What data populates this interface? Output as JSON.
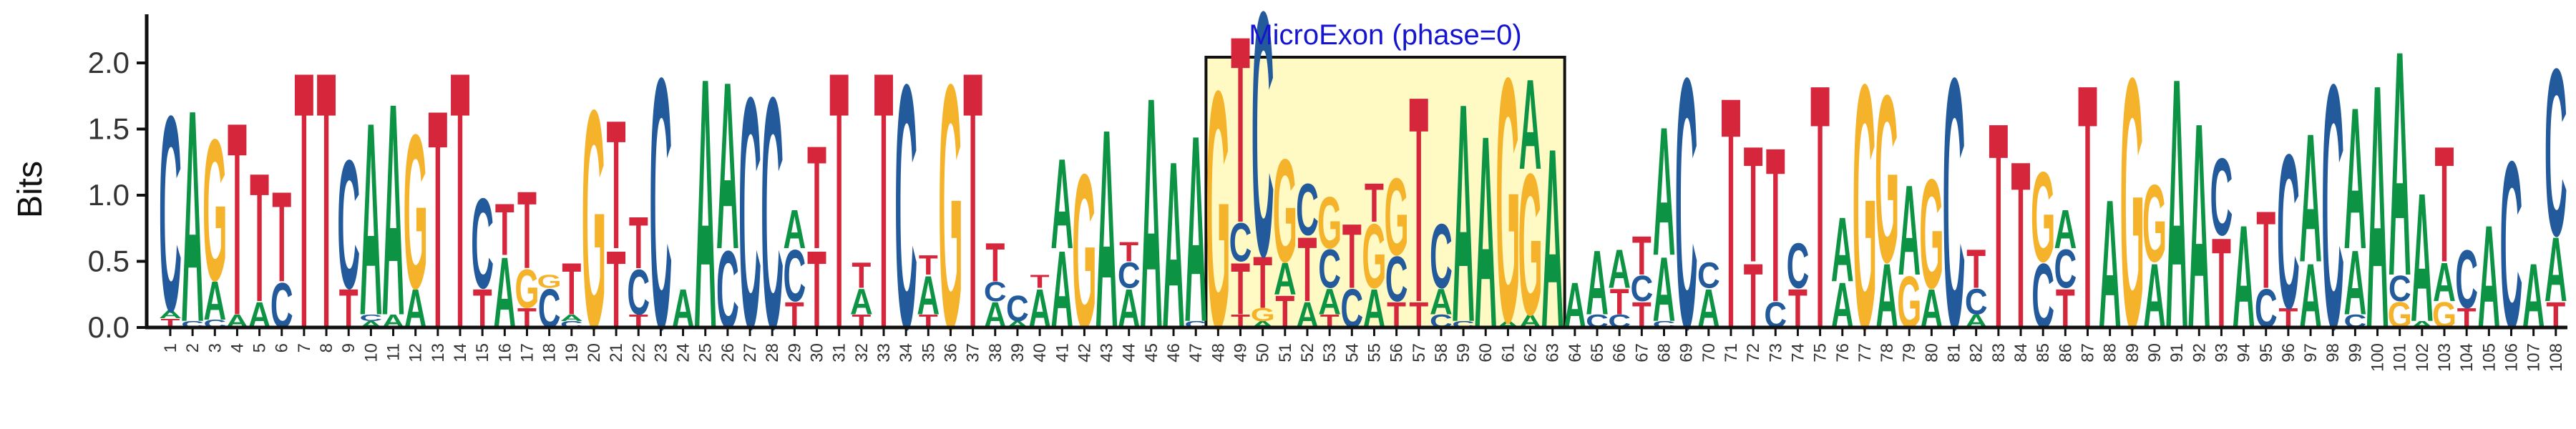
{
  "chart_data": {
    "type": "sequence-logo",
    "ylabel": "Bits",
    "ylim": [
      0,
      2.4
    ],
    "y_ticks": [
      "0.0",
      "0.5",
      "1.0",
      "1.5",
      "2.0"
    ],
    "x_ticks": [
      "1",
      "2",
      "3",
      "4",
      "5",
      "6",
      "7",
      "8",
      "9",
      "10",
      "11",
      "12",
      "13",
      "14",
      "15",
      "16",
      "17",
      "18",
      "19",
      "20",
      "21",
      "22",
      "23",
      "24",
      "25",
      "26",
      "27",
      "28",
      "29",
      "30",
      "31",
      "32",
      "33",
      "34",
      "35",
      "36",
      "37",
      "38",
      "39",
      "40",
      "41",
      "42",
      "43",
      "44",
      "45",
      "46",
      "47",
      "48",
      "49",
      "50",
      "51",
      "52",
      "53",
      "54",
      "55",
      "56",
      "57",
      "58",
      "59",
      "60",
      "61",
      "62",
      "63",
      "64",
      "65",
      "66",
      "67",
      "68",
      "69",
      "70",
      "71",
      "72",
      "73",
      "74",
      "75",
      "76",
      "77",
      "78",
      "79",
      "80",
      "81",
      "82",
      "83",
      "84",
      "85",
      "86",
      "87",
      "88",
      "89",
      "90",
      "91",
      "92",
      "93",
      "94",
      "95",
      "96",
      "97",
      "98",
      "99",
      "100",
      "101",
      "102",
      "103",
      "104",
      "105",
      "106",
      "107",
      "108"
    ],
    "grid": false,
    "legend": "none",
    "highlight": {
      "label": "MicroExon (phase=0)",
      "from": 48,
      "to": 63
    },
    "colors": {
      "A": "#0c9444",
      "C": "#235a9c",
      "G": "#f5b32b",
      "T": "#d5263c",
      "highlight_fill": "#fff9c4",
      "highlight_text": "#1515d0"
    },
    "columns": [
      [
        [
          "T",
          0.07
        ],
        [
          "A",
          0.06
        ],
        [
          "C",
          1.52
        ]
      ],
      [
        [
          "C",
          0.05
        ],
        [
          "A",
          1.65
        ]
      ],
      [
        [
          "C",
          0.06
        ],
        [
          "A",
          0.3
        ],
        [
          "G",
          1.1
        ]
      ],
      [
        [
          "A",
          0.1
        ],
        [
          "T",
          1.5
        ]
      ],
      [
        [
          "A",
          0.2
        ],
        [
          "T",
          1.0
        ]
      ],
      [
        [
          "C",
          0.35
        ],
        [
          "T",
          0.7
        ]
      ],
      [
        [
          "T",
          2.0
        ]
      ],
      [
        [
          "T",
          2.0
        ]
      ],
      [
        [
          "T",
          0.3
        ],
        [
          "C",
          1.0
        ]
      ],
      [
        [
          "A",
          0.05
        ],
        [
          "C",
          0.05
        ],
        [
          "A",
          1.5
        ]
      ],
      [
        [
          "A",
          0.1
        ],
        [
          "A",
          1.65
        ]
      ],
      [
        [
          "A",
          0.3
        ],
        [
          "G",
          1.2
        ]
      ],
      [
        [
          "T",
          1.7
        ]
      ],
      [
        [
          "T",
          2.0
        ]
      ],
      [
        [
          "T",
          0.3
        ],
        [
          "C",
          0.7
        ]
      ],
      [
        [
          "A",
          0.55
        ],
        [
          "T",
          0.4
        ]
      ],
      [
        [
          "T",
          0.15
        ],
        [
          "G",
          0.3
        ],
        [
          "T",
          0.6
        ]
      ],
      [
        [
          "C",
          0.3
        ],
        [
          "G",
          0.1
        ]
      ],
      [
        [
          "C",
          0.05
        ],
        [
          "A",
          0.05
        ],
        [
          "T",
          0.4
        ]
      ],
      [
        [
          "G",
          1.7
        ]
      ],
      [
        [
          "T",
          0.6
        ],
        [
          "T",
          1.0
        ]
      ],
      [
        [
          "T",
          0.1
        ],
        [
          "C",
          0.35
        ],
        [
          "T",
          0.4
        ]
      ],
      [
        [
          "C",
          1.95
        ]
      ],
      [
        [
          "A",
          0.3
        ]
      ],
      [
        [
          "A",
          1.95
        ]
      ],
      [
        [
          "C",
          0.6
        ],
        [
          "A",
          1.3
        ]
      ],
      [
        [
          "C",
          1.8
        ]
      ],
      [
        [
          "C",
          1.8
        ]
      ],
      [
        [
          "T",
          0.2
        ],
        [
          "C",
          0.4
        ],
        [
          "A",
          0.3
        ]
      ],
      [
        [
          "T",
          0.6
        ],
        [
          "T",
          0.8
        ]
      ],
      [
        [
          "T",
          2.0
        ]
      ],
      [
        [
          "T",
          0.1
        ],
        [
          "A",
          0.2
        ],
        [
          "T",
          0.2
        ]
      ],
      [
        [
          "T",
          2.0
        ]
      ],
      [
        [
          "C",
          1.9
        ]
      ],
      [
        [
          "T",
          0.1
        ],
        [
          "A",
          0.3
        ],
        [
          "T",
          0.15
        ]
      ],
      [
        [
          "G",
          1.9
        ]
      ],
      [
        [
          "T",
          2.0
        ]
      ],
      [
        [
          "A",
          0.2
        ],
        [
          "C",
          0.15
        ],
        [
          "T",
          0.3
        ]
      ],
      [
        [
          "A",
          0.05
        ],
        [
          "C",
          0.2
        ]
      ],
      [
        [
          "A",
          0.3
        ],
        [
          "T",
          0.1
        ]
      ],
      [
        [
          "A",
          0.6
        ],
        [
          "A",
          0.7
        ]
      ],
      [
        [
          "G",
          1.2
        ]
      ],
      [
        [
          "A",
          1.55
        ]
      ],
      [
        [
          "A",
          0.3
        ],
        [
          "C",
          0.2
        ],
        [
          "T",
          0.15
        ]
      ],
      [
        [
          "A",
          1.8
        ]
      ],
      [
        [
          "A",
          1.3
        ]
      ],
      [
        [
          "C",
          0.05
        ],
        [
          "A",
          1.45
        ]
      ],
      [
        [
          "G",
          1.85
        ]
      ],
      [
        [
          "T",
          0.1
        ],
        [
          "T",
          0.4
        ],
        [
          "C",
          0.3
        ],
        [
          "T",
          1.45
        ]
      ],
      [
        [
          "A",
          0.05
        ],
        [
          "G",
          0.1
        ],
        [
          "T",
          0.4
        ],
        [
          "C",
          1.9
        ]
      ],
      [
        [
          "T",
          0.25
        ],
        [
          "A",
          0.25
        ],
        [
          "G",
          0.8
        ]
      ],
      [
        [
          "A",
          0.2
        ],
        [
          "T",
          0.5
        ],
        [
          "C",
          0.4
        ]
      ],
      [
        [
          "T",
          0.1
        ],
        [
          "A",
          0.2
        ],
        [
          "C",
          0.3
        ],
        [
          "G",
          0.4
        ]
      ],
      [
        [
          "C",
          0.3
        ],
        [
          "T",
          0.5
        ]
      ],
      [
        [
          "A",
          0.3
        ],
        [
          "G",
          0.5
        ],
        [
          "T",
          0.3
        ]
      ],
      [
        [
          "T",
          0.2
        ],
        [
          "C",
          0.35
        ],
        [
          "G",
          0.6
        ]
      ],
      [
        [
          "T",
          0.2
        ],
        [
          "T",
          1.6
        ]
      ],
      [
        [
          "C",
          0.1
        ],
        [
          "A",
          0.2
        ],
        [
          "C",
          0.5
        ]
      ],
      [
        [
          "C",
          0.05
        ],
        [
          "A",
          1.7
        ]
      ],
      [
        [
          "A",
          1.5
        ]
      ],
      [
        [
          "A",
          0.05
        ],
        [
          "G",
          1.9
        ]
      ],
      [
        [
          "A",
          0.1
        ],
        [
          "G",
          1.1
        ],
        [
          "A",
          0.7
        ]
      ],
      [
        [
          "A",
          1.4
        ]
      ],
      [
        [
          "A",
          0.35
        ]
      ],
      [
        [
          "C",
          0.1
        ],
        [
          "A",
          0.5
        ]
      ],
      [
        [
          "C",
          0.1
        ],
        [
          "T",
          0.2
        ],
        [
          "A",
          0.3
        ]
      ],
      [
        [
          "T",
          0.2
        ],
        [
          "C",
          0.2
        ],
        [
          "T",
          0.3
        ]
      ],
      [
        [
          "C",
          0.05
        ],
        [
          "A",
          0.5
        ],
        [
          "A",
          1.0
        ]
      ],
      [
        [
          "C",
          1.95
        ]
      ],
      [
        [
          "A",
          0.3
        ],
        [
          "C",
          0.2
        ]
      ],
      [
        [
          "T",
          1.8
        ]
      ],
      [
        [
          "T",
          0.5
        ],
        [
          "T",
          0.9
        ]
      ],
      [
        [
          "C",
          0.2
        ],
        [
          "T",
          1.2
        ]
      ],
      [
        [
          "T",
          0.3
        ],
        [
          "C",
          0.35
        ]
      ],
      [
        [
          "T",
          1.9
        ]
      ],
      [
        [
          "A",
          0.35
        ],
        [
          "A",
          0.5
        ]
      ],
      [
        [
          "G",
          1.9
        ]
      ],
      [
        [
          "A",
          0.5
        ],
        [
          "G",
          1.3
        ]
      ],
      [
        [
          "G",
          0.4
        ],
        [
          "A",
          0.7
        ]
      ],
      [
        [
          "A",
          0.3
        ],
        [
          "G",
          0.85
        ]
      ],
      [
        [
          "C",
          1.95
        ]
      ],
      [
        [
          "A",
          0.1
        ],
        [
          "C",
          0.2
        ],
        [
          "T",
          0.3
        ]
      ],
      [
        [
          "T",
          1.6
        ]
      ],
      [
        [
          "T",
          1.3
        ]
      ],
      [
        [
          "C",
          0.5
        ],
        [
          "G",
          0.7
        ]
      ],
      [
        [
          "T",
          0.3
        ],
        [
          "C",
          0.3
        ],
        [
          "A",
          0.3
        ]
      ],
      [
        [
          "T",
          1.9
        ]
      ],
      [
        [
          "A",
          1.0
        ]
      ],
      [
        [
          "G",
          1.95
        ]
      ],
      [
        [
          "A",
          0.5
        ],
        [
          "G",
          0.6
        ]
      ],
      [
        [
          "A",
          1.95
        ]
      ],
      [
        [
          "A",
          1.6
        ]
      ],
      [
        [
          "T",
          0.7
        ],
        [
          "C",
          0.6
        ]
      ],
      [
        [
          "A",
          0.8
        ]
      ],
      [
        [
          "C",
          0.3
        ],
        [
          "T",
          0.6
        ]
      ],
      [
        [
          "T",
          0.15
        ],
        [
          "C",
          1.2
        ]
      ],
      [
        [
          "A",
          0.5
        ],
        [
          "A",
          1.0
        ]
      ],
      [
        [
          "C",
          1.9
        ]
      ],
      [
        [
          "C",
          0.1
        ],
        [
          "A",
          0.5
        ],
        [
          "A",
          1.1
        ]
      ],
      [
        [
          "A",
          1.9
        ]
      ],
      [
        [
          "G",
          0.2
        ],
        [
          "C",
          0.2
        ],
        [
          "A",
          1.75
        ]
      ],
      [
        [
          "A",
          0.05
        ],
        [
          "A",
          1.0
        ]
      ],
      [
        [
          "G",
          0.2
        ],
        [
          "A",
          0.3
        ],
        [
          "T",
          0.9
        ]
      ],
      [
        [
          "T",
          0.15
        ],
        [
          "C",
          0.45
        ]
      ],
      [
        [
          "A",
          0.8
        ]
      ],
      [
        [
          "C",
          1.3
        ]
      ],
      [
        [
          "A",
          0.5
        ]
      ],
      [
        [
          "T",
          0.2
        ],
        [
          "A",
          0.5
        ],
        [
          "C",
          1.3
        ]
      ]
    ]
  }
}
